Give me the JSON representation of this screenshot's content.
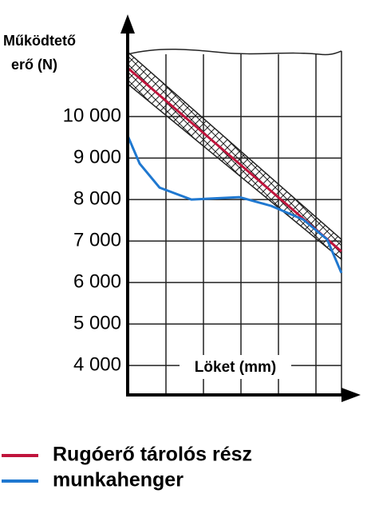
{
  "chart_data": {
    "type": "line",
    "ylabel": [
      "Működtető",
      "erő (N)"
    ],
    "xlabel": "Löket (mm)",
    "ylim": [
      3290,
      11560
    ],
    "xlim": [
      0,
      6
    ],
    "yticks": [
      {
        "value": 4000,
        "label": "4 000"
      },
      {
        "value": 5000,
        "label": "5 000"
      },
      {
        "value": 6000,
        "label": "6 000"
      },
      {
        "value": 7000,
        "label": "7 000"
      },
      {
        "value": 8000,
        "label": "8 000"
      },
      {
        "value": 9000,
        "label": "9 000"
      },
      {
        "value": 10000,
        "label": "10 000"
      }
    ],
    "grid": true,
    "band": {
      "x": [
        0,
        5.7
      ],
      "upper": [
        11558,
        7038
      ],
      "lower": [
        10788,
        6558
      ]
    },
    "series": [
      {
        "name": "Rugóerő tárolós rész",
        "color": "#c0143c",
        "x": [
          0,
          5.7
        ],
        "values": [
          11173,
          6750
        ]
      },
      {
        "name": "munkahenger",
        "color": "#1f78d0",
        "x": [
          0,
          0.32,
          0.85,
          1.7,
          2.98,
          3.83,
          4.68,
          5.32,
          5.7
        ],
        "values": [
          9538,
          8865,
          8288,
          8000,
          8058,
          7846,
          7519,
          7038,
          6231
        ]
      }
    ]
  }
}
